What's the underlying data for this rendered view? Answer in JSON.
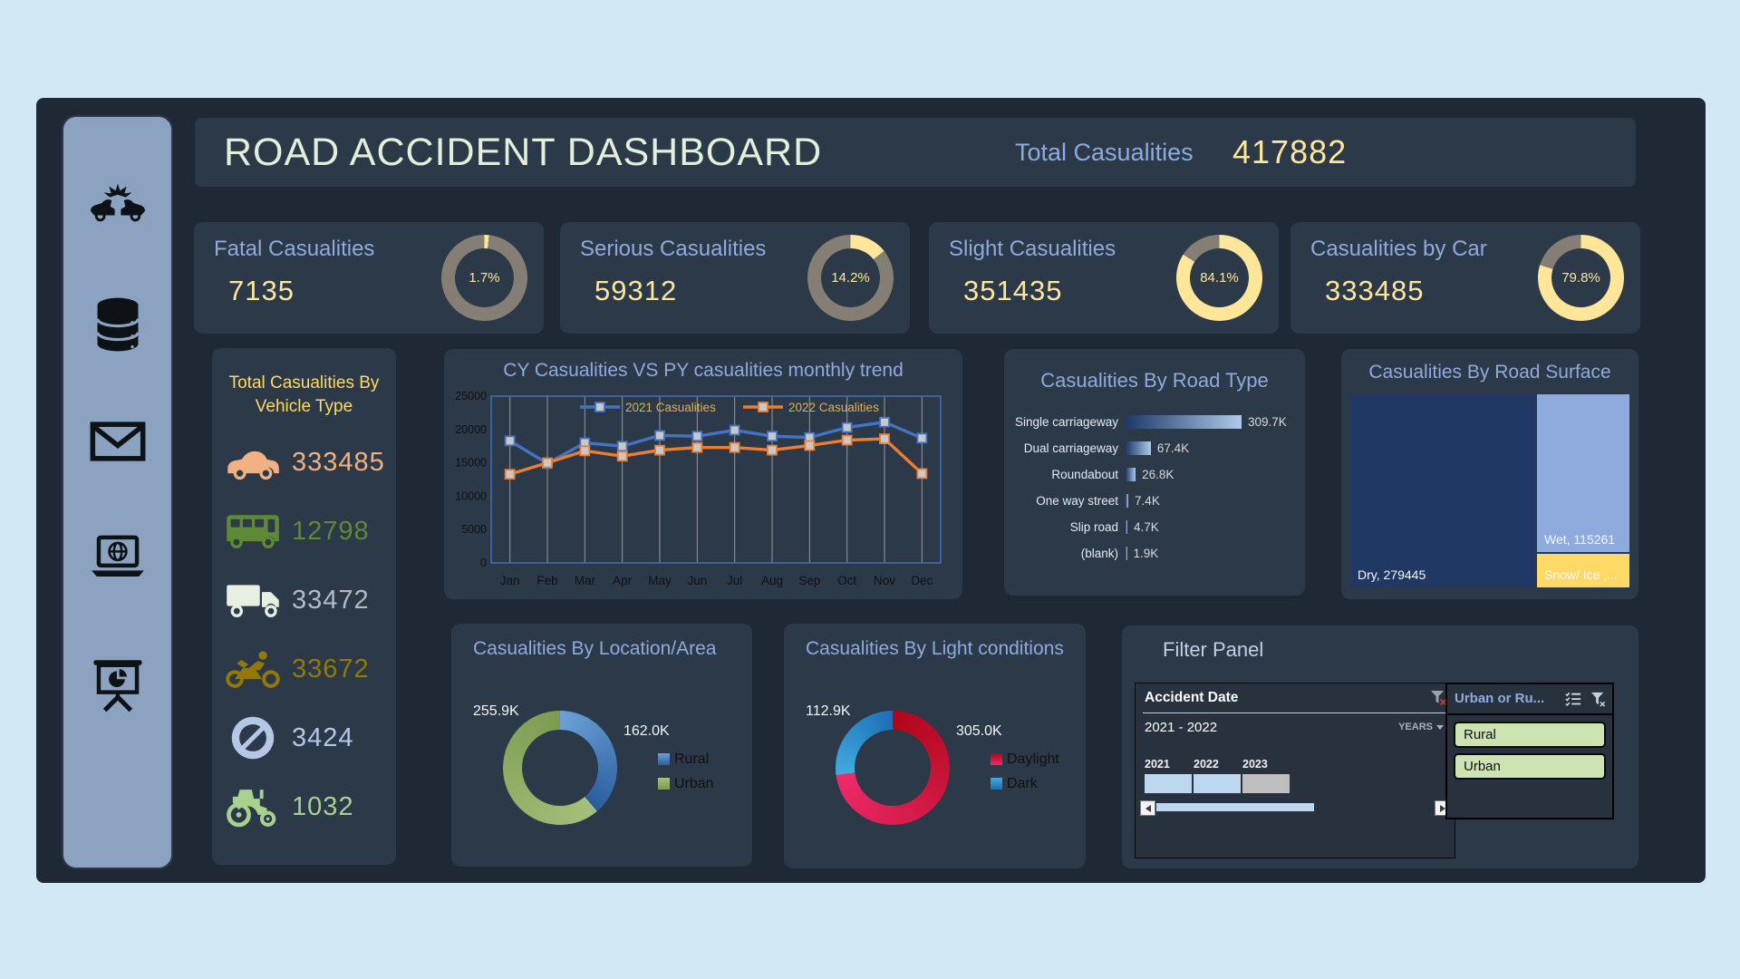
{
  "header": {
    "title": "ROAD ACCIDENT DASHBOARD",
    "total_label": "Total Casualities",
    "total_value": "417882"
  },
  "sidebar": {
    "icons": [
      "car-crash-icon",
      "database-icon",
      "mail-icon",
      "laptop-globe-icon",
      "presentation-chart-icon"
    ]
  },
  "kpis": [
    {
      "title": "Fatal Casualities",
      "value": "7135",
      "pct": "1.7%",
      "pct_num": 1.7
    },
    {
      "title": "Serious Casualities",
      "value": "59312",
      "pct": "14.2%",
      "pct_num": 14.2
    },
    {
      "title": "Slight Casualities",
      "value": "351435",
      "pct": "84.1%",
      "pct_num": 84.1
    },
    {
      "title": "Casualities by Car",
      "value": "333485",
      "pct": "79.8%",
      "pct_num": 79.8
    }
  ],
  "vehicle_panel": {
    "title": "Total Casualities By Vehicle Type",
    "items": [
      {
        "icon": "car-icon",
        "value": "333485",
        "color": "#f2b183"
      },
      {
        "icon": "bus-icon",
        "value": "12798",
        "color": "#5e8a35"
      },
      {
        "icon": "truck-icon",
        "value": "33472",
        "color": "#b3bac3",
        "icon_color": "#e7efe3"
      },
      {
        "icon": "motorcycle-icon",
        "value": "33672",
        "color": "#937804"
      },
      {
        "icon": "no-entry-icon",
        "value": "3424",
        "color": "#b4c7e7"
      },
      {
        "icon": "tractor-icon",
        "value": "1032",
        "color": "#a9d18e"
      }
    ]
  },
  "filter_panel": {
    "title": "Filter Panel",
    "timeline": {
      "header": "Accident Date",
      "range_label": "2021 - 2022",
      "period_label": "YEARS",
      "years": [
        {
          "label": "2021",
          "selected": true
        },
        {
          "label": "2022",
          "selected": true
        },
        {
          "label": "2023",
          "selected": false
        }
      ]
    },
    "slicer": {
      "header": "Urban or Ru...",
      "items": [
        "Rural",
        "Urban"
      ]
    }
  },
  "colors": {
    "kpi_highlight": "#ffe699",
    "kpi_ring": "#857e74",
    "selected_year": "#bdd7ee",
    "unselected_year": "#bfbfbf",
    "slicer_item": "#cde3b2"
  },
  "chart_data": [
    {
      "id": "monthly_trend",
      "type": "line",
      "title": "CY Casualities VS PY casualities monthly trend",
      "categories": [
        "Jan",
        "Feb",
        "Mar",
        "Apr",
        "May",
        "Jun",
        "Jul",
        "Aug",
        "Sep",
        "Oct",
        "Nov",
        "Dec"
      ],
      "series": [
        {
          "name": "2021 Casualities",
          "color": "#4472c4",
          "values": [
            18300,
            14900,
            18000,
            17500,
            19100,
            19000,
            19900,
            19000,
            18800,
            20300,
            21100,
            18700
          ]
        },
        {
          "name": "2022 Casualities",
          "color": "#ed7d31",
          "values": [
            13300,
            15000,
            16800,
            16000,
            16900,
            17300,
            17300,
            16900,
            17600,
            18400,
            18600,
            13400
          ]
        }
      ],
      "ylim": [
        0,
        25000
      ],
      "ytick": 5000,
      "grid": "vertical",
      "legend_position": "top-inside",
      "marker": "square"
    },
    {
      "id": "road_type",
      "type": "bar",
      "orientation": "horizontal",
      "title": "Casualities By Road Type",
      "categories": [
        "Single carriageway",
        "Dual carriageway",
        "Roundabout",
        "One way street",
        "Slip road",
        "(blank)"
      ],
      "values": [
        309700,
        67400,
        26800,
        7400,
        4700,
        1900
      ],
      "labels": [
        "309.7K",
        "67.4K",
        "26.8K",
        "7.4K",
        "4.7K",
        "1.9K"
      ]
    },
    {
      "id": "road_surface",
      "type": "treemap",
      "title": "Casualities By Road Surface",
      "items": [
        {
          "name": "Dry",
          "value": 279445,
          "label": "Dry, 279445",
          "color": "#1f3864"
        },
        {
          "name": "Wet",
          "value": 115261,
          "label": "Wet, 115261",
          "color": "#8faadc"
        },
        {
          "name": "Snow/ Ice",
          "label": "Snow/ Ice ,...",
          "color": "#ffd966"
        }
      ]
    },
    {
      "id": "location",
      "type": "pie",
      "title": "Casualities By Location/Area",
      "slices": [
        {
          "name": "Rural",
          "value": 162000,
          "label": "162.0K",
          "grad": [
            "#6ba1d8",
            "#2a5d9d"
          ]
        },
        {
          "name": "Urban",
          "value": 255900,
          "label": "255.9K",
          "grad": [
            "#a6c07c",
            "#7d9b50"
          ]
        }
      ],
      "legend_position": "right"
    },
    {
      "id": "light",
      "type": "pie",
      "title": "Casualities By Light conditions",
      "slices": [
        {
          "name": "Daylight",
          "value": 305000,
          "label": "305.0K",
          "grad": [
            "#b00618",
            "#ee2a6b"
          ]
        },
        {
          "name": "Dark",
          "value": 112900,
          "label": "112.9K",
          "grad": [
            "#41aadf",
            "#1d6fb5"
          ]
        }
      ],
      "legend_position": "right"
    }
  ]
}
